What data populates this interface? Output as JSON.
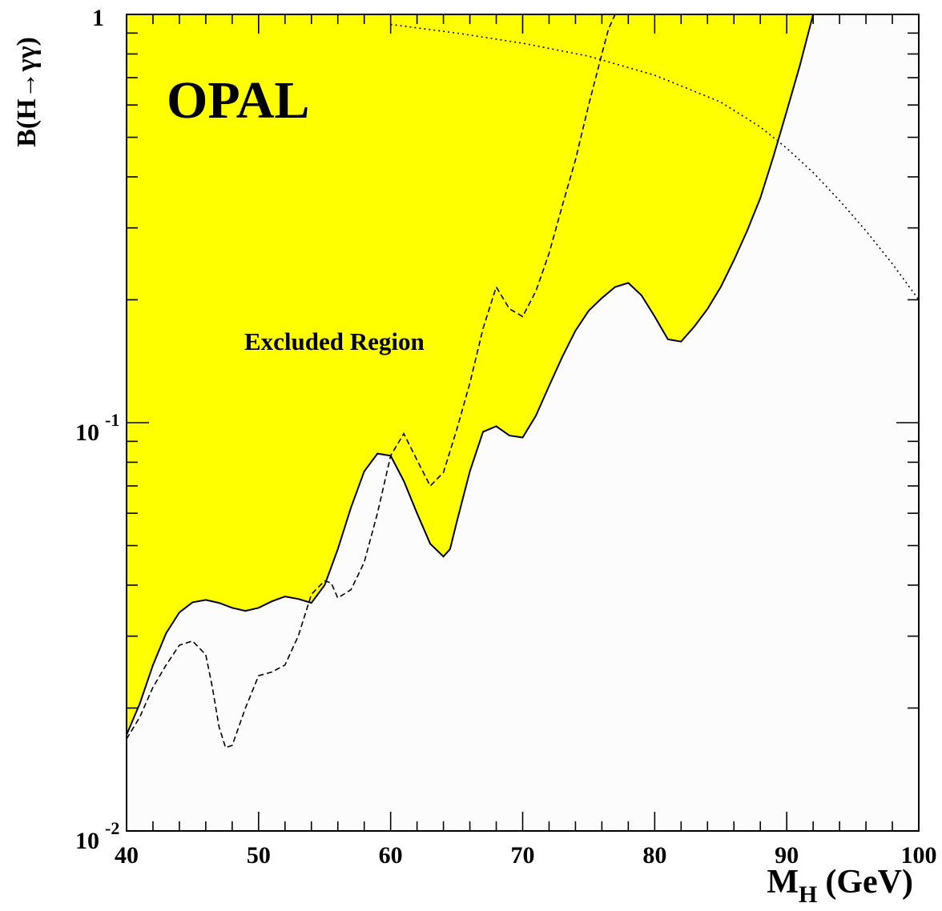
{
  "chart_data": {
    "type": "line",
    "title": "OPAL",
    "annotation": "Excluded Region",
    "xlabel": {
      "main": "M",
      "sub": "H",
      "unit": "(GeV)"
    },
    "ylabel": "B(H→γγ)",
    "xlim": [
      40,
      100
    ],
    "ylim": [
      0.01,
      1
    ],
    "yscale": "log",
    "grid": false,
    "colors": {
      "excluded": "#ffff00",
      "allowed": "#fcfcfc",
      "line": "#000000"
    },
    "xticks": [
      "40",
      "50",
      "60",
      "70",
      "80",
      "90",
      "100"
    ],
    "yticks": [
      {
        "value": 1,
        "base": "1",
        "exp": ""
      },
      {
        "value": 0.1,
        "base": "10",
        "exp": "-1"
      },
      {
        "value": 0.01,
        "base": "10",
        "exp": "-2"
      }
    ],
    "series": [
      {
        "style": "solid",
        "x": [
          40,
          41,
          42,
          43,
          44,
          45,
          46,
          47,
          48,
          49,
          50,
          51,
          52,
          53,
          54,
          55,
          56,
          57,
          58,
          59,
          60,
          61,
          62,
          63,
          64,
          64.5,
          65,
          66,
          67,
          68,
          69,
          70,
          71,
          72,
          73,
          74,
          75,
          76,
          77,
          78,
          79,
          80,
          81,
          82,
          83,
          84,
          85,
          86,
          87,
          88,
          89,
          90,
          91,
          92,
          93
        ],
        "y": [
          0.0172,
          0.0205,
          0.0255,
          0.0305,
          0.0343,
          0.0363,
          0.0368,
          0.0362,
          0.0352,
          0.0346,
          0.0352,
          0.0365,
          0.0375,
          0.037,
          0.0362,
          0.04,
          0.049,
          0.062,
          0.076,
          0.084,
          0.083,
          0.072,
          0.06,
          0.0505,
          0.047,
          0.049,
          0.057,
          0.076,
          0.095,
          0.098,
          0.093,
          0.092,
          0.104,
          0.123,
          0.145,
          0.168,
          0.188,
          0.202,
          0.215,
          0.22,
          0.205,
          0.182,
          0.16,
          0.158,
          0.172,
          0.19,
          0.215,
          0.25,
          0.295,
          0.355,
          0.45,
          0.58,
          0.75,
          1.0,
          1.4
        ]
      },
      {
        "style": "dashed",
        "x": [
          40,
          41,
          42,
          43,
          44,
          45,
          46,
          46.5,
          47,
          47.5,
          48,
          49,
          50,
          51,
          52,
          53,
          54,
          55,
          55.5,
          56,
          57,
          58,
          59,
          60,
          61,
          62,
          63,
          64,
          65,
          66,
          67,
          68,
          69,
          70,
          71,
          72,
          73,
          74,
          75,
          76,
          76.5,
          77
        ],
        "y": [
          0.0168,
          0.019,
          0.0225,
          0.0255,
          0.0285,
          0.0292,
          0.027,
          0.0225,
          0.018,
          0.016,
          0.0162,
          0.02,
          0.024,
          0.0245,
          0.0255,
          0.03,
          0.038,
          0.041,
          0.0405,
          0.0372,
          0.039,
          0.0455,
          0.06,
          0.083,
          0.094,
          0.081,
          0.07,
          0.0755,
          0.096,
          0.125,
          0.17,
          0.215,
          0.19,
          0.182,
          0.21,
          0.26,
          0.34,
          0.44,
          0.6,
          0.8,
          0.92,
          1.0
        ]
      },
      {
        "style": "dotted",
        "x": [
          60,
          65,
          70,
          75,
          80,
          85,
          88,
          90,
          92,
          94,
          96,
          98,
          100
        ],
        "y": [
          0.945,
          0.9,
          0.85,
          0.79,
          0.71,
          0.61,
          0.53,
          0.47,
          0.41,
          0.35,
          0.295,
          0.245,
          0.2
        ]
      }
    ]
  }
}
